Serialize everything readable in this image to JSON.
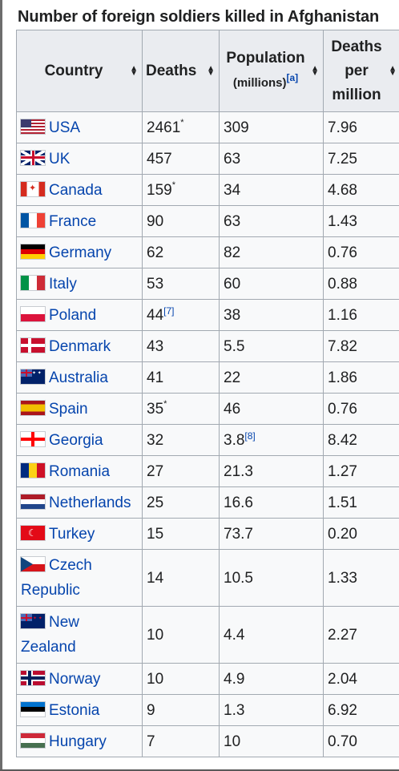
{
  "table": {
    "caption": "Number of foreign soldiers killed in Afghanistan",
    "headers": {
      "country": "Country",
      "deaths": "Deaths",
      "population": "Population",
      "population_unit": "(millions)",
      "population_note": "[a]",
      "per_million_line1": "Deaths",
      "per_million_line2": "per",
      "per_million_line3": "million"
    },
    "sort_icon": "sort-arrows-icon",
    "rows": [
      {
        "country": "USA",
        "flag": "usa-flag-icon",
        "deaths": "2461",
        "deaths_note": "*",
        "population": "309",
        "population_note": "",
        "per_million": "7.96"
      },
      {
        "country": "UK",
        "flag": "uk-flag-icon",
        "deaths": "457",
        "deaths_note": "",
        "population": "63",
        "population_note": "",
        "per_million": "7.25"
      },
      {
        "country": "Canada",
        "flag": "canada-flag-icon",
        "deaths": "159",
        "deaths_note": "*",
        "population": "34",
        "population_note": "",
        "per_million": "4.68"
      },
      {
        "country": "France",
        "flag": "france-flag-icon",
        "deaths": "90",
        "deaths_note": "",
        "population": "63",
        "population_note": "",
        "per_million": "1.43"
      },
      {
        "country": "Germany",
        "flag": "germany-flag-icon",
        "deaths": "62",
        "deaths_note": "",
        "population": "82",
        "population_note": "",
        "per_million": "0.76"
      },
      {
        "country": "Italy",
        "flag": "italy-flag-icon",
        "deaths": "53",
        "deaths_note": "",
        "population": "60",
        "population_note": "",
        "per_million": "0.88"
      },
      {
        "country": "Poland",
        "flag": "poland-flag-icon",
        "deaths": "44",
        "deaths_note": "[7]",
        "population": "38",
        "population_note": "",
        "per_million": "1.16"
      },
      {
        "country": "Denmark",
        "flag": "denmark-flag-icon",
        "deaths": "43",
        "deaths_note": "",
        "population": "5.5",
        "population_note": "",
        "per_million": "7.82"
      },
      {
        "country": "Australia",
        "flag": "australia-flag-icon",
        "deaths": "41",
        "deaths_note": "",
        "population": "22",
        "population_note": "",
        "per_million": "1.86"
      },
      {
        "country": "Spain",
        "flag": "spain-flag-icon",
        "deaths": "35",
        "deaths_note": "*",
        "population": "46",
        "population_note": "",
        "per_million": "0.76"
      },
      {
        "country": "Georgia",
        "flag": "georgia-flag-icon",
        "deaths": "32",
        "deaths_note": "",
        "population": "3.8",
        "population_note": "[8]",
        "per_million": "8.42"
      },
      {
        "country": "Romania",
        "flag": "romania-flag-icon",
        "deaths": "27",
        "deaths_note": "",
        "population": "21.3",
        "population_note": "",
        "per_million": "1.27"
      },
      {
        "country": "Netherlands",
        "flag": "netherlands-flag-icon",
        "deaths": "25",
        "deaths_note": "",
        "population": "16.6",
        "population_note": "",
        "per_million": "1.51"
      },
      {
        "country": "Turkey",
        "flag": "turkey-flag-icon",
        "deaths": "15",
        "deaths_note": "",
        "population": "73.7",
        "population_note": "",
        "per_million": "0.20"
      },
      {
        "country": "Czech Republic",
        "flag": "czech-flag-icon",
        "deaths": "14",
        "deaths_note": "",
        "population": "10.5",
        "population_note": "",
        "per_million": "1.33"
      },
      {
        "country": "New Zealand",
        "flag": "new-zealand-flag-icon",
        "deaths": "10",
        "deaths_note": "",
        "population": "4.4",
        "population_note": "",
        "per_million": "2.27"
      },
      {
        "country": "Norway",
        "flag": "norway-flag-icon",
        "deaths": "10",
        "deaths_note": "",
        "population": "4.9",
        "population_note": "",
        "per_million": "2.04"
      },
      {
        "country": "Estonia",
        "flag": "estonia-flag-icon",
        "deaths": "9",
        "deaths_note": "",
        "population": "1.3",
        "population_note": "",
        "per_million": "6.92"
      },
      {
        "country": "Hungary",
        "flag": "hungary-flag-icon",
        "deaths": "7",
        "deaths_note": "",
        "population": "10",
        "population_note": "",
        "per_million": "0.70"
      }
    ]
  },
  "colors": {
    "link": "#0645ad",
    "header_bg": "#eaecf0",
    "cell_bg": "#f8f9fa",
    "border": "#a2a9b1"
  }
}
